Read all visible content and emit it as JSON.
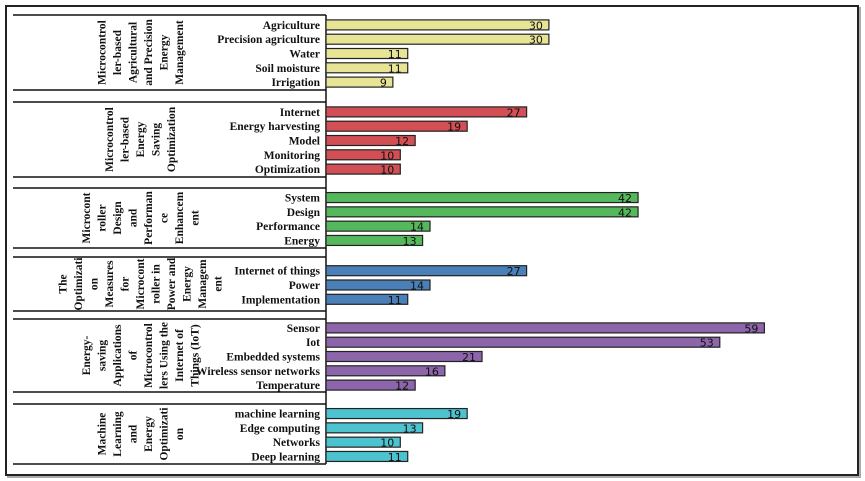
{
  "chart_data": {
    "type": "bar",
    "orientation": "horizontal",
    "title": "",
    "xlabel": "",
    "ylabel": "",
    "grid": false,
    "legend": "none",
    "xlim": [
      0,
      59
    ],
    "groups": [
      {
        "name": "Microcontroller-based Agricultural and Precision Energy Management",
        "label_lines": [
          "Microcontrol",
          "ler-based",
          "Agricultural",
          "and Precision",
          "Energy",
          "Management"
        ],
        "color": "#e8e496",
        "categories": [
          "Agriculture",
          "Precision agriculture",
          "Water",
          "Soil moisture",
          "Irrigation"
        ],
        "values": [
          30,
          30,
          11,
          11,
          9
        ]
      },
      {
        "name": "Microcontroller-based Energy Saving Optimization",
        "label_lines": [
          "Microcontrol",
          "ler-based",
          "Energy",
          "Saving",
          "Optimization"
        ],
        "color": "#d24f55",
        "categories": [
          "Internet",
          "Energy harvesting",
          "Model",
          "Monitoring",
          "Optimization"
        ],
        "values": [
          27,
          19,
          12,
          10,
          10
        ]
      },
      {
        "name": "Microcontroller Design and Performance Enhancement",
        "label_lines": [
          "Microcont",
          "roller",
          "Design",
          "and",
          "Performan",
          "ce",
          "Enhancem",
          "ent"
        ],
        "color": "#55b85c",
        "categories": [
          "System",
          "Design",
          "Performance",
          "Energy"
        ],
        "values": [
          42,
          42,
          14,
          13
        ]
      },
      {
        "name": "The Optimization Measures for Microcontroller in Power and Energy Management",
        "label_lines": [
          "The",
          "Optimizati",
          "on",
          "Measures",
          "for",
          "Microcont",
          "roller in",
          "Power and",
          "Energy",
          "Managem",
          "ent"
        ],
        "color": "#4a7fb8",
        "categories": [
          "Internet of things",
          "Power",
          "Implementation"
        ],
        "values": [
          27,
          14,
          11
        ]
      },
      {
        "name": "Energy-saving Applications of Microcontrollers Using the Internet of Things (IoT)",
        "label_lines": [
          "Energy-",
          "saving",
          "Applications",
          "of",
          "Microcontrol",
          "lers Using the",
          "Internet of",
          "Things (IoT)"
        ],
        "color": "#8c65aa",
        "categories": [
          "Sensor",
          "Iot",
          "Embedded systems",
          "Wireless sensor networks",
          "Temperature"
        ],
        "values": [
          59,
          53,
          21,
          16,
          12
        ]
      },
      {
        "name": "Machine Learning and Energy Optimization",
        "label_lines": [
          "Machine",
          "Learning",
          "and",
          "Energy",
          "Optimizati",
          "on"
        ],
        "color": "#4dc3cf",
        "categories": [
          "machine learning",
          "Edge computing",
          "Networks",
          "Deep learning"
        ],
        "values": [
          19,
          13,
          10,
          11
        ]
      }
    ]
  }
}
